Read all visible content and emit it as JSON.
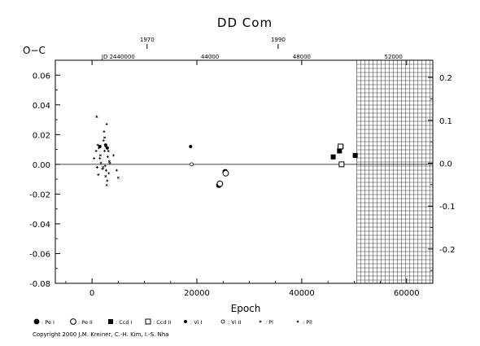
{
  "chart_data": {
    "type": "scatter",
    "title": "DD Com",
    "xlabel": "Epoch",
    "ylabel": "O−C",
    "xlim": [
      -7000,
      65000
    ],
    "ylim": [
      -0.08,
      0.07
    ],
    "right_ylim": [
      -0.28,
      0.24
    ],
    "grid": false,
    "x_ticks": [
      {
        "value": 0,
        "label": "0"
      },
      {
        "value": 20000,
        "label": "20000"
      },
      {
        "value": 40000,
        "label": "40000"
      },
      {
        "value": 60000,
        "label": "60000"
      }
    ],
    "y_ticks": [
      {
        "value": 0.06,
        "label": "0.06"
      },
      {
        "value": 0.04,
        "label": "0.04"
      },
      {
        "value": 0.02,
        "label": "0.02"
      },
      {
        "value": 0.0,
        "label": "0.00"
      },
      {
        "value": -0.02,
        "label": "-0.02"
      },
      {
        "value": -0.04,
        "label": "-0.04"
      },
      {
        "value": -0.06,
        "label": "-0.06"
      },
      {
        "value": -0.08,
        "label": "-0.08"
      }
    ],
    "right_y_ticks": [
      {
        "value": 0.2,
        "label": "0.2"
      },
      {
        "value": 0.1,
        "label": "0.1"
      },
      {
        "value": 0.0,
        "label": "0.0"
      },
      {
        "value": -0.1,
        "label": "-0.1"
      },
      {
        "value": -0.2,
        "label": "-0.2"
      }
    ],
    "top_year_ticks": [
      {
        "epoch": 10500,
        "label": "1970"
      },
      {
        "epoch": 35500,
        "label": "1990"
      }
    ],
    "top_jd_ticks": [
      {
        "epoch": 5000,
        "label": "JD 2440000"
      },
      {
        "epoch": 22500,
        "label": "44000"
      },
      {
        "epoch": 40000,
        "label": "48000"
      },
      {
        "epoch": 57500,
        "label": "52000"
      }
    ],
    "future_region_start": 50500,
    "series": [
      {
        "name": ": Pe I",
        "marker": "filled-circle",
        "points": [
          [
            24200,
            -0.014
          ],
          [
            25400,
            -0.005
          ]
        ]
      },
      {
        "name": ": Pe II",
        "marker": "open-circle",
        "points": [
          [
            24400,
            -0.013
          ],
          [
            25500,
            -0.006
          ]
        ]
      },
      {
        "name": ": Ccd I",
        "marker": "filled-square",
        "points": [
          [
            46000,
            0.005
          ],
          [
            47200,
            0.009
          ],
          [
            47500,
            0.012
          ],
          [
            50200,
            0.006
          ]
        ]
      },
      {
        "name": ": Ccd II",
        "marker": "open-square",
        "points": [
          [
            47400,
            0.012
          ],
          [
            47600,
            0.0
          ]
        ]
      },
      {
        "name": ": Vi I",
        "marker": "filled-diamond",
        "points": [
          [
            18800,
            0.012
          ],
          [
            1500,
            0.012
          ],
          [
            2600,
            0.013
          ],
          [
            2900,
            0.011
          ]
        ]
      },
      {
        "name": ": Vi II",
        "marker": "open-diamond",
        "points": [
          [
            19000,
            0.0
          ]
        ]
      },
      {
        "name": ": Pl",
        "marker": "plus",
        "points": [
          [
            400,
            0.004
          ],
          [
            800,
            0.009
          ],
          [
            1000,
            -0.002
          ],
          [
            1100,
            0.013
          ],
          [
            1200,
            -0.007
          ],
          [
            1300,
            0.011
          ],
          [
            1500,
            0.004
          ],
          [
            1700,
            0.001
          ],
          [
            2000,
            -0.003
          ],
          [
            2200,
            0.016
          ],
          [
            2300,
            0.022
          ],
          [
            2400,
            0.009
          ],
          [
            2500,
            -0.001
          ],
          [
            2600,
            0.012
          ],
          [
            2700,
            -0.004
          ],
          [
            2800,
            0.027
          ],
          [
            2900,
            -0.011
          ],
          [
            3000,
            0.005
          ],
          [
            3100,
            0.009
          ],
          [
            3200,
            -0.006
          ],
          [
            3400,
            0.001
          ],
          [
            4100,
            0.006
          ],
          [
            4700,
            -0.004
          ]
        ]
      },
      {
        "name": ": Pll",
        "marker": "x",
        "points": [
          [
            900,
            0.032
          ],
          [
            1600,
            0.006
          ],
          [
            2100,
            -0.002
          ],
          [
            2400,
            0.018
          ],
          [
            2600,
            -0.008
          ],
          [
            2800,
            -0.014
          ],
          [
            3300,
            0.002
          ],
          [
            5000,
            -0.009
          ]
        ]
      }
    ]
  },
  "copyright": "Copyright 2000 J.M. Kreiner, C.-H. Kim, I.-S. Nha"
}
